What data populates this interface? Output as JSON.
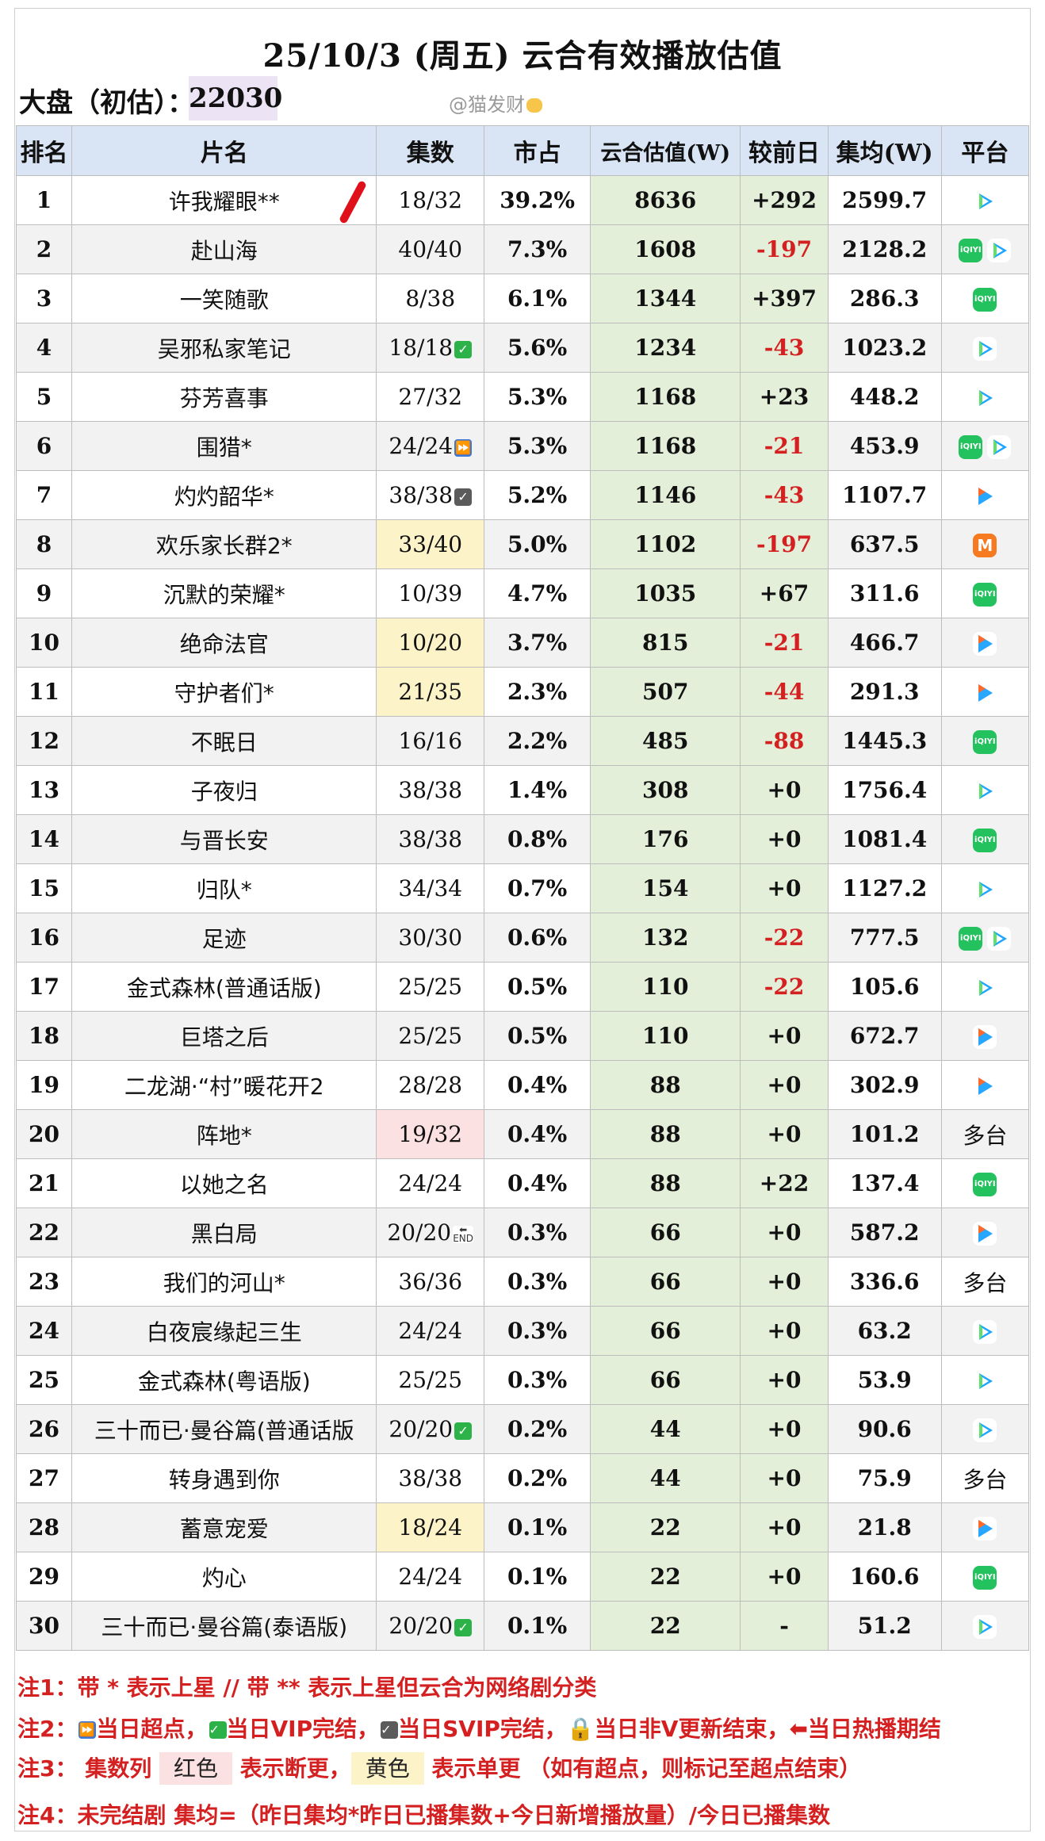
{
  "title": "25/10/3 (周五) 云合有效播放估值",
  "dapan": {
    "label": "大盘（初估）：",
    "value": "22030"
  },
  "watermark": "@猫发财",
  "headers": [
    "排名",
    "片名",
    "集数",
    "市占",
    "云合估值(W)",
    "较前日",
    "集均(W)",
    "平台"
  ],
  "rows": [
    {
      "rank": "1",
      "title": "许我耀眼**",
      "ep": "18/32",
      "ep_mark": "",
      "ep_bg": "",
      "share": "39.2%",
      "value": "8636",
      "change": "+292",
      "neg": false,
      "avg": "2599.7",
      "platforms": [
        "tencent"
      ],
      "platform_text": ""
    },
    {
      "rank": "2",
      "title": "赴山海",
      "ep": "40/40",
      "ep_mark": "",
      "ep_bg": "",
      "share": "7.3%",
      "value": "1608",
      "change": "-197",
      "neg": true,
      "avg": "2128.2",
      "platforms": [
        "iqiyi",
        "tencent"
      ],
      "platform_text": ""
    },
    {
      "rank": "3",
      "title": "一笑随歌",
      "ep": "8/38",
      "ep_mark": "",
      "ep_bg": "",
      "share": "6.1%",
      "value": "1344",
      "change": "+397",
      "neg": false,
      "avg": "286.3",
      "platforms": [
        "iqiyi"
      ],
      "platform_text": ""
    },
    {
      "rank": "4",
      "title": "吴邪私家笔记",
      "ep": "18/18",
      "ep_mark": "check",
      "ep_bg": "",
      "share": "5.6%",
      "value": "1234",
      "change": "-43",
      "neg": true,
      "avg": "1023.2",
      "platforms": [
        "tencent"
      ],
      "platform_text": ""
    },
    {
      "rank": "5",
      "title": "芬芳喜事",
      "ep": "27/32",
      "ep_mark": "",
      "ep_bg": "",
      "share": "5.3%",
      "value": "1168",
      "change": "+23",
      "neg": false,
      "avg": "448.2",
      "platforms": [
        "tencent"
      ],
      "platform_text": ""
    },
    {
      "rank": "6",
      "title": "围猎*",
      "ep": "24/24",
      "ep_mark": "ff",
      "ep_bg": "",
      "share": "5.3%",
      "value": "1168",
      "change": "-21",
      "neg": true,
      "avg": "453.9",
      "platforms": [
        "iqiyi",
        "tencent"
      ],
      "platform_text": ""
    },
    {
      "rank": "7",
      "title": "灼灼韶华*",
      "ep": "38/38",
      "ep_mark": "svip",
      "ep_bg": "",
      "share": "5.2%",
      "value": "1146",
      "change": "-43",
      "neg": true,
      "avg": "1107.7",
      "platforms": [
        "youku"
      ],
      "platform_text": ""
    },
    {
      "rank": "8",
      "title": "欢乐家长群2*",
      "ep": "33/40",
      "ep_mark": "",
      "ep_bg": "yellow",
      "share": "5.0%",
      "value": "1102",
      "change": "-197",
      "neg": true,
      "avg": "637.5",
      "platforms": [
        "mango"
      ],
      "platform_text": ""
    },
    {
      "rank": "9",
      "title": "沉默的荣耀*",
      "ep": "10/39",
      "ep_mark": "",
      "ep_bg": "",
      "share": "4.7%",
      "value": "1035",
      "change": "+67",
      "neg": false,
      "avg": "311.6",
      "platforms": [
        "iqiyi"
      ],
      "platform_text": ""
    },
    {
      "rank": "10",
      "title": "绝命法官",
      "ep": "10/20",
      "ep_mark": "",
      "ep_bg": "yellow",
      "share": "3.7%",
      "value": "815",
      "change": "-21",
      "neg": true,
      "avg": "466.7",
      "platforms": [
        "youku"
      ],
      "platform_text": ""
    },
    {
      "rank": "11",
      "title": "守护者们*",
      "ep": "21/35",
      "ep_mark": "",
      "ep_bg": "yellow",
      "share": "2.3%",
      "value": "507",
      "change": "-44",
      "neg": true,
      "avg": "291.3",
      "platforms": [
        "youku"
      ],
      "platform_text": ""
    },
    {
      "rank": "12",
      "title": "不眠日",
      "ep": "16/16",
      "ep_mark": "",
      "ep_bg": "",
      "share": "2.2%",
      "value": "485",
      "change": "-88",
      "neg": true,
      "avg": "1445.3",
      "platforms": [
        "iqiyi"
      ],
      "platform_text": ""
    },
    {
      "rank": "13",
      "title": "子夜归",
      "ep": "38/38",
      "ep_mark": "",
      "ep_bg": "",
      "share": "1.4%",
      "value": "308",
      "change": "+0",
      "neg": false,
      "avg": "1756.4",
      "platforms": [
        "tencent"
      ],
      "platform_text": ""
    },
    {
      "rank": "14",
      "title": "与晋长安",
      "ep": "38/38",
      "ep_mark": "",
      "ep_bg": "",
      "share": "0.8%",
      "value": "176",
      "change": "+0",
      "neg": false,
      "avg": "1081.4",
      "platforms": [
        "iqiyi"
      ],
      "platform_text": ""
    },
    {
      "rank": "15",
      "title": "归队*",
      "ep": "34/34",
      "ep_mark": "",
      "ep_bg": "",
      "share": "0.7%",
      "value": "154",
      "change": "+0",
      "neg": false,
      "avg": "1127.2",
      "platforms": [
        "tencent"
      ],
      "platform_text": ""
    },
    {
      "rank": "16",
      "title": "足迹",
      "ep": "30/30",
      "ep_mark": "",
      "ep_bg": "",
      "share": "0.6%",
      "value": "132",
      "change": "-22",
      "neg": true,
      "avg": "777.5",
      "platforms": [
        "iqiyi",
        "tencent"
      ],
      "platform_text": ""
    },
    {
      "rank": "17",
      "title": "金式森林(普通话版)",
      "ep": "25/25",
      "ep_mark": "",
      "ep_bg": "",
      "share": "0.5%",
      "value": "110",
      "change": "-22",
      "neg": true,
      "avg": "105.6",
      "platforms": [
        "tencent"
      ],
      "platform_text": ""
    },
    {
      "rank": "18",
      "title": "巨塔之后",
      "ep": "25/25",
      "ep_mark": "",
      "ep_bg": "",
      "share": "0.5%",
      "value": "110",
      "change": "+0",
      "neg": false,
      "avg": "672.7",
      "platforms": [
        "youku"
      ],
      "platform_text": ""
    },
    {
      "rank": "19",
      "title": "二龙湖·“村”暖花开2",
      "ep": "28/28",
      "ep_mark": "",
      "ep_bg": "",
      "share": "0.4%",
      "value": "88",
      "change": "+0",
      "neg": false,
      "avg": "302.9",
      "platforms": [
        "youku"
      ],
      "platform_text": ""
    },
    {
      "rank": "20",
      "title": "阵地*",
      "ep": "19/32",
      "ep_mark": "",
      "ep_bg": "pink",
      "share": "0.4%",
      "value": "88",
      "change": "+0",
      "neg": false,
      "avg": "101.2",
      "platforms": [],
      "platform_text": "多台"
    },
    {
      "rank": "21",
      "title": "以她之名",
      "ep": "24/24",
      "ep_mark": "",
      "ep_bg": "",
      "share": "0.4%",
      "value": "88",
      "change": "+22",
      "neg": false,
      "avg": "137.4",
      "platforms": [
        "iqiyi"
      ],
      "platform_text": ""
    },
    {
      "rank": "22",
      "title": "黑白局",
      "ep": "20/20",
      "ep_mark": "end",
      "ep_bg": "",
      "share": "0.3%",
      "value": "66",
      "change": "+0",
      "neg": false,
      "avg": "587.2",
      "platforms": [
        "youku"
      ],
      "platform_text": ""
    },
    {
      "rank": "23",
      "title": "我们的河山*",
      "ep": "36/36",
      "ep_mark": "",
      "ep_bg": "",
      "share": "0.3%",
      "value": "66",
      "change": "+0",
      "neg": false,
      "avg": "336.6",
      "platforms": [],
      "platform_text": "多台"
    },
    {
      "rank": "24",
      "title": "白夜宸缘起三生",
      "ep": "24/24",
      "ep_mark": "",
      "ep_bg": "",
      "share": "0.3%",
      "value": "66",
      "change": "+0",
      "neg": false,
      "avg": "63.2",
      "platforms": [
        "tencent"
      ],
      "platform_text": ""
    },
    {
      "rank": "25",
      "title": "金式森林(粤语版)",
      "ep": "25/25",
      "ep_mark": "",
      "ep_bg": "",
      "share": "0.3%",
      "value": "66",
      "change": "+0",
      "neg": false,
      "avg": "53.9",
      "platforms": [
        "tencent"
      ],
      "platform_text": ""
    },
    {
      "rank": "26",
      "title": "三十而已·曼谷篇(普通话版",
      "ep": "20/20",
      "ep_mark": "check",
      "ep_bg": "",
      "share": "0.2%",
      "value": "44",
      "change": "+0",
      "neg": false,
      "avg": "90.6",
      "platforms": [
        "tencent"
      ],
      "platform_text": ""
    },
    {
      "rank": "27",
      "title": "转身遇到你",
      "ep": "38/38",
      "ep_mark": "",
      "ep_bg": "",
      "share": "0.2%",
      "value": "44",
      "change": "+0",
      "neg": false,
      "avg": "75.9",
      "platforms": [],
      "platform_text": "多台"
    },
    {
      "rank": "28",
      "title": "蓄意宠爱",
      "ep": "18/24",
      "ep_mark": "",
      "ep_bg": "yellow",
      "share": "0.1%",
      "value": "22",
      "change": "+0",
      "neg": false,
      "avg": "21.8",
      "platforms": [
        "youku"
      ],
      "platform_text": ""
    },
    {
      "rank": "29",
      "title": "灼心",
      "ep": "24/24",
      "ep_mark": "",
      "ep_bg": "",
      "share": "0.1%",
      "value": "22",
      "change": "+0",
      "neg": false,
      "avg": "160.6",
      "platforms": [
        "iqiyi"
      ],
      "platform_text": ""
    },
    {
      "rank": "30",
      "title": "三十而已·曼谷篇(泰语版)",
      "ep": "20/20",
      "ep_mark": "check",
      "ep_bg": "",
      "share": "0.1%",
      "value": "22",
      "change": "-",
      "neg": false,
      "avg": "51.2",
      "platforms": [
        "tencent"
      ],
      "platform_text": ""
    }
  ],
  "notes": {
    "n1": "注1：带 * 表示上星 // 带 ** 表示上星但云合为网络剧分类",
    "n2_prefix": "注2：",
    "n2_a": "当日超点，",
    "n2_b": "当日VIP完结，",
    "n2_c": "当日SVIP完结，",
    "n2_d": "当日非V更新结束，",
    "n2_e": "当日热播期结",
    "n3_prefix": "注3：   集数列 ",
    "n3_red": "红色",
    "n3_mid": " 表示断更，",
    "n3_yel": "黄色",
    "n3_tail": " 表示单更 （如有超点，则标记至超点结束）",
    "n4": "注4：未完结剧 集均=（昨日集均*昨日已播集数+今日新增播放量）/今日已播集数"
  },
  "platform_labels": {
    "iqiyi": "iQIYI",
    "mango": "M"
  }
}
